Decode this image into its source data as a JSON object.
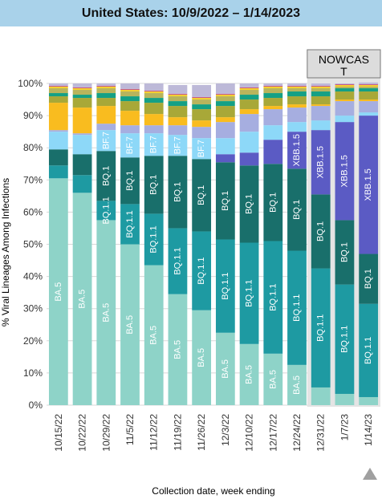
{
  "title": "United States: 10/9/2022 – 1/14/2023",
  "nowcast_label_line1": "NOWCAS",
  "nowcast_label_line2": "T",
  "chart_data": {
    "type": "bar",
    "stacked": true,
    "ylabel": "% Viral Lineages Among Infections",
    "xlabel": "Collection date, week ending",
    "ylim": [
      0,
      100
    ],
    "yticks": [
      "0%",
      "10%",
      "20%",
      "30%",
      "40%",
      "50%",
      "60%",
      "70%",
      "80%",
      "90%",
      "100%"
    ],
    "grid": true,
    "categories": [
      "10/15/22",
      "10/22/22",
      "10/29/22",
      "11/5/22",
      "11/12/22",
      "11/19/22",
      "11/26/22",
      "12/3/22",
      "12/10/22",
      "12/17/22",
      "12/24/22",
      "12/31/22",
      "1/7/23",
      "1/14/23"
    ],
    "nowcast_categories": [
      "12/31/22",
      "1/7/23",
      "1/14/23"
    ],
    "series": [
      {
        "name": "BA.5",
        "color": "#8ed3c8",
        "label_color": "#000000",
        "values": [
          70.5,
          66,
          57.5,
          50,
          43.5,
          34.5,
          29.5,
          22.5,
          19,
          16,
          12.5,
          5.5,
          3.5,
          2.5
        ]
      },
      {
        "name": "BQ.1.1",
        "color": "#1e9aa2",
        "label_color": "#ffffff",
        "values": [
          4,
          5.5,
          6,
          12.5,
          16,
          20.5,
          24.5,
          29,
          31.5,
          35,
          35.5,
          37,
          34,
          29
        ]
      },
      {
        "name": "BQ.1",
        "color": "#196f6b",
        "label_color": "#ffffff",
        "values": [
          5,
          6.5,
          15.5,
          14.5,
          18,
          22.5,
          22.5,
          24,
          24,
          24,
          25.5,
          23,
          20,
          15.5
        ]
      },
      {
        "name": "XBB.1.5",
        "color": "#5b5bc4",
        "label_color": "#ffffff",
        "values": [
          0,
          0,
          0,
          0,
          0,
          0,
          0,
          2.5,
          4,
          7.5,
          11.5,
          20,
          30.5,
          43
        ]
      },
      {
        "name": "BF.7",
        "color": "#8dd8f8",
        "label_color": "#000000",
        "values": [
          5.5,
          6,
          6.5,
          7.5,
          7,
          6.5,
          6.5,
          5,
          6.5,
          4.5,
          3,
          3,
          2,
          1
        ]
      },
      {
        "name": "",
        "color": "#a6aee0",
        "label_color": "#000000",
        "values": [
          0.5,
          0.5,
          2,
          2.5,
          2.5,
          3,
          3.5,
          5,
          5.5,
          5,
          4.5,
          4.5,
          4.5,
          3.5
        ]
      },
      {
        "name": "",
        "color": "#f9bc1f",
        "label_color": "#000000",
        "values": [
          8.5,
          8,
          5.5,
          4.5,
          3.5,
          2.5,
          2,
          1.5,
          1.5,
          1,
          1,
          0.5,
          0.5,
          0.5
        ]
      },
      {
        "name": "",
        "color": "#a8a838",
        "label_color": "#000000",
        "values": [
          2,
          3,
          2.5,
          3,
          3.5,
          3.5,
          3.5,
          3.5,
          3,
          2.5,
          2.5,
          2.5,
          2.5,
          2.5
        ]
      },
      {
        "name": "",
        "color": "#14a085",
        "label_color": "#000000",
        "values": [
          1,
          1,
          1.5,
          1.5,
          1.5,
          1.5,
          1.5,
          1.5,
          1.5,
          1.5,
          1.5,
          1.5,
          1,
          1
        ]
      },
      {
        "name": "",
        "color": "#b8b45c",
        "label_color": "#000000",
        "values": [
          1.5,
          1.5,
          1.5,
          1.5,
          1.5,
          1.5,
          1.5,
          1.5,
          1.5,
          1.5,
          1,
          1,
          0.5,
          0.5
        ]
      },
      {
        "name": "",
        "color": "#f5d02f",
        "label_color": "#000000",
        "values": [
          0.5,
          0.5,
          0.5,
          0.5,
          0.5,
          0.5,
          0.5,
          0.5,
          0.5,
          0.5,
          0.5,
          0.5,
          0.5,
          0.5
        ]
      },
      {
        "name": "",
        "color": "#c45c8c",
        "label_color": "#000000",
        "values": [
          0.3,
          0.3,
          0.3,
          0.3,
          0.3,
          0.3,
          0.3,
          0.3,
          0.3,
          0.3,
          0.3,
          0.3,
          0.3,
          0.3
        ]
      },
      {
        "name": "",
        "color": "#bdb9d8",
        "label_color": "#000000",
        "values": [
          0.7,
          1.2,
          0.7,
          1.7,
          2.2,
          2.7,
          3.7,
          3.2,
          1.2,
          0.7,
          0.7,
          0.7,
          0.2,
          0.5
        ]
      }
    ],
    "labels": [
      {
        "series": "BA.5",
        "cols": [
          0,
          1,
          2,
          3,
          4,
          5,
          6,
          7,
          8,
          9,
          10
        ]
      },
      {
        "series": "BQ.1.1",
        "cols": [
          2,
          3,
          4,
          5,
          6,
          7,
          8,
          9,
          10,
          11,
          12,
          13
        ]
      },
      {
        "series": "BQ.1",
        "cols": [
          2,
          3,
          4,
          5,
          6,
          7,
          8,
          9,
          10,
          11,
          12,
          13
        ]
      },
      {
        "series": "BF.7",
        "cols": [
          2,
          3,
          4,
          5,
          6
        ]
      },
      {
        "series": "XBB.1.5",
        "cols": [
          10,
          11,
          12,
          13
        ]
      }
    ]
  }
}
